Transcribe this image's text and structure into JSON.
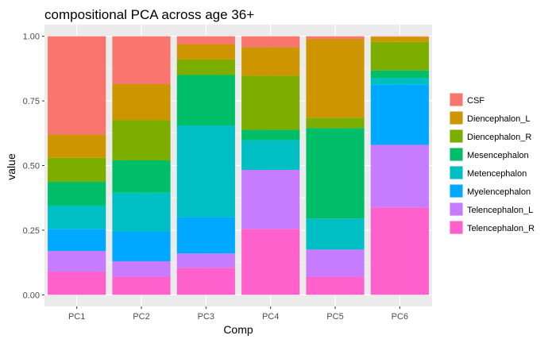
{
  "chart_data": {
    "type": "bar",
    "stacked": true,
    "title": "compositional PCA across age 36+",
    "xlabel": "Comp",
    "ylabel": "value",
    "ylim": [
      0,
      1
    ],
    "yticks": [
      "0.00",
      "0.25",
      "0.50",
      "0.75",
      "1.00"
    ],
    "categories": [
      "PC1",
      "PC2",
      "PC3",
      "PC4",
      "PC5",
      "PC6"
    ],
    "grid": true,
    "legend_position": "right",
    "series": [
      {
        "name": "Telencephalon_R",
        "color": "#FF61CC",
        "values": [
          0.09,
          0.07,
          0.105,
          0.255,
          0.07,
          0.338
        ]
      },
      {
        "name": "Telencephalon_L",
        "color": "#C77CFF",
        "values": [
          0.08,
          0.06,
          0.055,
          0.228,
          0.105,
          0.242
        ]
      },
      {
        "name": "Myelencephalon",
        "color": "#00A9FF",
        "values": [
          0.085,
          0.115,
          0.14,
          0.0,
          0.0,
          0.232
        ]
      },
      {
        "name": "Metencephalon",
        "color": "#00BFC4",
        "values": [
          0.09,
          0.15,
          0.355,
          0.115,
          0.12,
          0.026
        ]
      },
      {
        "name": "Mesencephalon",
        "color": "#00BE67",
        "values": [
          0.092,
          0.125,
          0.195,
          0.04,
          0.35,
          0.03
        ]
      },
      {
        "name": "Diencephalon_R",
        "color": "#7CAE00",
        "values": [
          0.093,
          0.155,
          0.06,
          0.21,
          0.04,
          0.11
        ]
      },
      {
        "name": "Diencephalon_L",
        "color": "#CD9600",
        "values": [
          0.09,
          0.14,
          0.06,
          0.11,
          0.305,
          0.02
        ]
      },
      {
        "name": "CSF",
        "color": "#F8766D",
        "values": [
          0.38,
          0.185,
          0.03,
          0.042,
          0.01,
          0.002
        ]
      }
    ],
    "legend_order": [
      "CSF",
      "Diencephalon_L",
      "Diencephalon_R",
      "Mesencephalon",
      "Metencephalon",
      "Myelencephalon",
      "Telencephalon_L",
      "Telencephalon_R"
    ]
  }
}
